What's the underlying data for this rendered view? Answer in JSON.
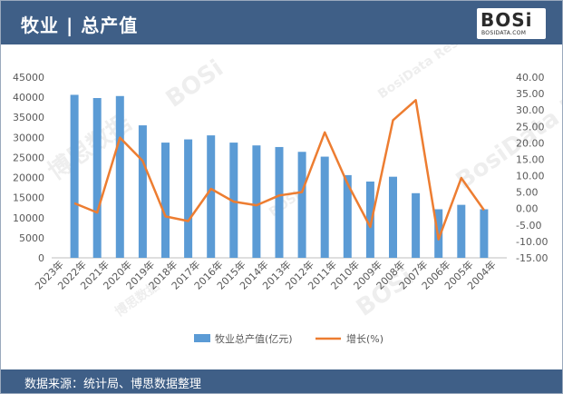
{
  "header": {
    "title": "牧业 | 总产值",
    "logo_text": "BOSi",
    "logo_sub": "BOSIDATA.COM"
  },
  "footer": {
    "source": "数据来源：统计局、博思数据整理"
  },
  "watermark": {
    "cn": "博思数据",
    "en": "BosiData Research",
    "logo": "BOSi"
  },
  "colors": {
    "header_bg": "#3f5f87",
    "bar": "#5b9bd5",
    "line": "#ed7d31"
  },
  "chart_data": {
    "type": "bar",
    "categories": [
      "2023年",
      "2022年",
      "2021年",
      "2020年",
      "2019年",
      "2018年",
      "2017年",
      "2016年",
      "2015年",
      "2014年",
      "2013年",
      "2012年",
      "2011年",
      "2010年",
      "2009年",
      "2008年",
      "2007年",
      "2006年",
      "2005年",
      "2004年"
    ],
    "series": [
      {
        "name": "牧业总产值(亿元)",
        "type": "bar",
        "axis": "left",
        "values": [
          40600,
          39800,
          40300,
          33000,
          28700,
          29500,
          30500,
          28700,
          28000,
          27600,
          26400,
          25200,
          20600,
          19000,
          20200,
          16100,
          12100,
          13200,
          12100,
          null
        ]
      },
      {
        "name": "增长(%)",
        "type": "line",
        "axis": "right",
        "values": [
          1.6,
          -1.2,
          21.6,
          14.5,
          -2.4,
          -3.8,
          6.0,
          2.1,
          1.0,
          4.0,
          5.0,
          23.2,
          7.6,
          -5.6,
          26.9,
          33.0,
          -9.4,
          9.3,
          -0.5,
          null
        ]
      }
    ],
    "y_left": {
      "ylim": [
        0,
        45000
      ],
      "ticks": [
        "0",
        "5000",
        "10000",
        "15000",
        "20000",
        "25000",
        "30000",
        "35000",
        "40000",
        "45000"
      ]
    },
    "y_right": {
      "ylim": [
        -15,
        40
      ],
      "ticks": [
        "-15.00",
        "-10.00",
        "-5.00",
        "0.00",
        "5.00",
        "10.00",
        "15.00",
        "20.00",
        "25.00",
        "30.00",
        "35.00",
        "40.00"
      ]
    },
    "legend": {
      "placement": "bottom"
    },
    "grid": false
  }
}
